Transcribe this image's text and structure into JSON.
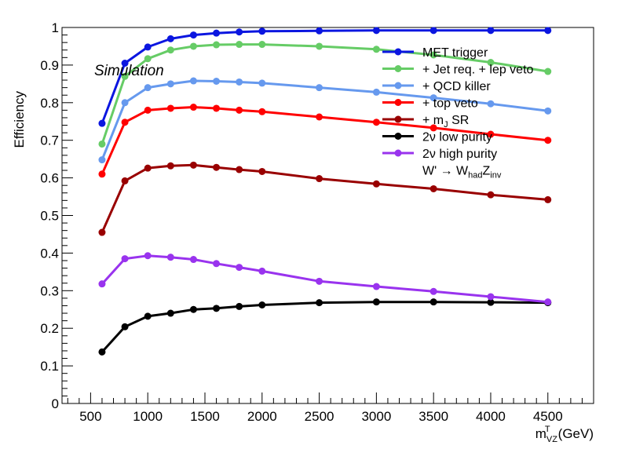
{
  "chart_data": {
    "type": "line",
    "title": "",
    "xlabel": {
      "main": "m",
      "sup": "T",
      "sub": "VZ",
      "unit": "(GeV)"
    },
    "ylabel": "Efficiency",
    "xlim": [
      250,
      4900
    ],
    "ylim": [
      0,
      1
    ],
    "x_ticks": [
      500,
      1000,
      1500,
      2000,
      2500,
      3000,
      3500,
      4000,
      4500
    ],
    "y_ticks": [
      0,
      0.1,
      0.2,
      0.3,
      0.4,
      0.5,
      0.6,
      0.7,
      0.8,
      0.9,
      1
    ],
    "y_tick_labels": [
      "0",
      "0.1",
      "0.2",
      "0.3",
      "0.4",
      "0.5",
      "0.6",
      "0.7",
      "0.8",
      "0.9",
      "1"
    ],
    "annotation": "Simulation",
    "legend_position": "top-right",
    "legend_header": {
      "main": "W' → W",
      "sub1": "had",
      "mid": "Z",
      "sub2": "inv"
    },
    "x": [
      600,
      800,
      1000,
      1200,
      1400,
      1600,
      1800,
      2000,
      2500,
      3000,
      3500,
      4000,
      4500
    ],
    "series": [
      {
        "name": "MET trigger",
        "color": "#0b16e0",
        "values": [
          0.745,
          0.905,
          0.948,
          0.97,
          0.98,
          0.985,
          0.988,
          0.99,
          0.991,
          0.992,
          0.992,
          0.992,
          0.992
        ]
      },
      {
        "name": "+ Jet req. + lep veto",
        "color": "#66cc66",
        "values": [
          0.69,
          0.87,
          0.917,
          0.94,
          0.95,
          0.954,
          0.955,
          0.955,
          0.95,
          0.942,
          0.927,
          0.907,
          0.883
        ]
      },
      {
        "name": "+ QCD killer",
        "color": "#6699ee",
        "values": [
          0.648,
          0.8,
          0.84,
          0.85,
          0.858,
          0.857,
          0.855,
          0.852,
          0.84,
          0.828,
          0.813,
          0.797,
          0.778
        ]
      },
      {
        "name": "+ top veto",
        "color": "#ff0000",
        "values": [
          0.61,
          0.748,
          0.78,
          0.785,
          0.788,
          0.785,
          0.78,
          0.776,
          0.762,
          0.748,
          0.733,
          0.716,
          0.7
        ]
      },
      {
        "name": "+ m",
        "sub": "J",
        "tail": " SR",
        "color": "#990000",
        "values": [
          0.455,
          0.592,
          0.626,
          0.632,
          0.634,
          0.628,
          0.622,
          0.617,
          0.598,
          0.584,
          0.571,
          0.555,
          0.542
        ]
      },
      {
        "name": "2ν low purity",
        "color": "#000000",
        "values": [
          0.137,
          0.204,
          0.232,
          0.24,
          0.25,
          0.253,
          0.258,
          0.262,
          0.268,
          0.27,
          0.27,
          0.269,
          0.268
        ]
      },
      {
        "name": "2ν high purity",
        "color": "#9933ee",
        "values": [
          0.318,
          0.385,
          0.393,
          0.389,
          0.383,
          0.372,
          0.362,
          0.352,
          0.325,
          0.311,
          0.298,
          0.284,
          0.27
        ]
      }
    ]
  }
}
